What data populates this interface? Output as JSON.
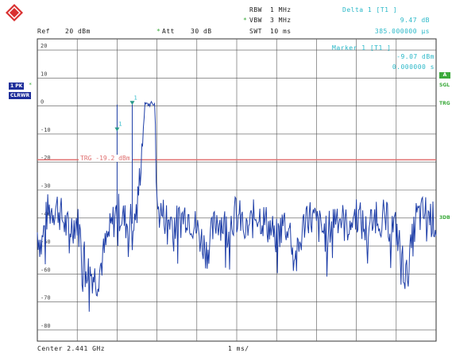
{
  "header": {
    "ref_label": "Ref",
    "ref_value": "20 dBm",
    "att_label": "Att",
    "att_value": "30 dB",
    "rbw_label": "RBW",
    "rbw_value": "1 MHz",
    "vbw_label": "VBW",
    "vbw_value": "3 MHz",
    "swt_label": "SWT",
    "swt_value": "10 ms",
    "star": "*"
  },
  "delta_marker": {
    "title": "Delta 1 [T1 ]",
    "level": "9.47 dB",
    "time": "385.000000 µs"
  },
  "marker1": {
    "title": "Marker 1 [T1 ]",
    "level": "-9.07 dBm",
    "time": "0.000000 s"
  },
  "left_labels": {
    "trace": "1 PK",
    "mode": "CLRWR"
  },
  "right_labels": {
    "a": "A",
    "sgl": "SGL",
    "trg": "TRG",
    "db3": "3DB"
  },
  "trigger_line": {
    "label": "TRG",
    "value": "-19.2 dBm",
    "color": "#e07070"
  },
  "footer": {
    "center": "Center 2.441 GHz",
    "span": "1 ms/"
  },
  "chart_data": {
    "type": "line",
    "xlabel": "",
    "ylabel": "",
    "ylim": [
      -84,
      24
    ],
    "yticks": [
      "20",
      "10",
      "0",
      "-10",
      "-20",
      "-30",
      "-40",
      "-50",
      "-60",
      "-70",
      "-80"
    ],
    "xlim": [
      0,
      10
    ],
    "x_unit": "ms",
    "grid": true,
    "series": [
      {
        "color": "#1f3fa8",
        "x": [
          0,
          0.1,
          0.25,
          0.5,
          0.75,
          1.0,
          1.25,
          1.5,
          1.75,
          2.0,
          2.25,
          2.5,
          2.7,
          2.95,
          3.0,
          3.25,
          3.5,
          3.75,
          4.0,
          4.25,
          4.5,
          4.75,
          5.0,
          5.25,
          5.5,
          5.75,
          6.0,
          6.25,
          6.5,
          6.75,
          7.0,
          7.25,
          7.5,
          7.75,
          8.0,
          8.25,
          8.5,
          8.75,
          9.0,
          9.25,
          9.5,
          9.75,
          10.0
        ],
        "y": [
          -45,
          -50,
          -38,
          -36,
          -44,
          -41,
          -58,
          -62,
          -48,
          -37,
          -42,
          -38,
          0.5,
          0.8,
          -37,
          -40,
          -42,
          -38,
          -44,
          -52,
          -40,
          -43,
          -38,
          -45,
          -38,
          -42,
          -47,
          -40,
          -55,
          -38,
          -42,
          -46,
          -38,
          -43,
          -38,
          -45,
          -38,
          -41,
          -44,
          -62,
          -40,
          -38,
          -42
        ]
      }
    ],
    "markers": [
      {
        "name": "1",
        "x": 2.0,
        "y": -9.07
      },
      {
        "name": "1",
        "x": 2.38,
        "y": 0.4
      }
    ],
    "hline": {
      "y": -19.2
    }
  }
}
